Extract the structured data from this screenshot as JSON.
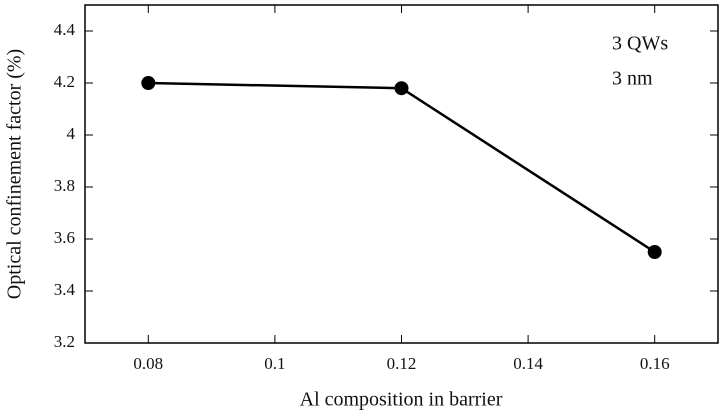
{
  "chart_data": {
    "type": "line",
    "x_label": "Al composition in barrier",
    "y_label": "Optical confinement factor (%)",
    "annotations": [
      "3 QWs",
      "3 nm"
    ],
    "x": [
      0.08,
      0.12,
      0.16
    ],
    "series": [
      {
        "color": "#000000",
        "values": [
          4.2,
          4.18,
          3.55
        ]
      }
    ],
    "xlim": [
      0.07,
      0.17
    ],
    "xticks": [
      0.08,
      0.1,
      0.12,
      0.14,
      0.16
    ],
    "ylim": [
      3.2,
      4.5
    ],
    "yticks": [
      3.2,
      3.4,
      3.6,
      3.8,
      4,
      4.2,
      4.4
    ],
    "grid": false
  }
}
